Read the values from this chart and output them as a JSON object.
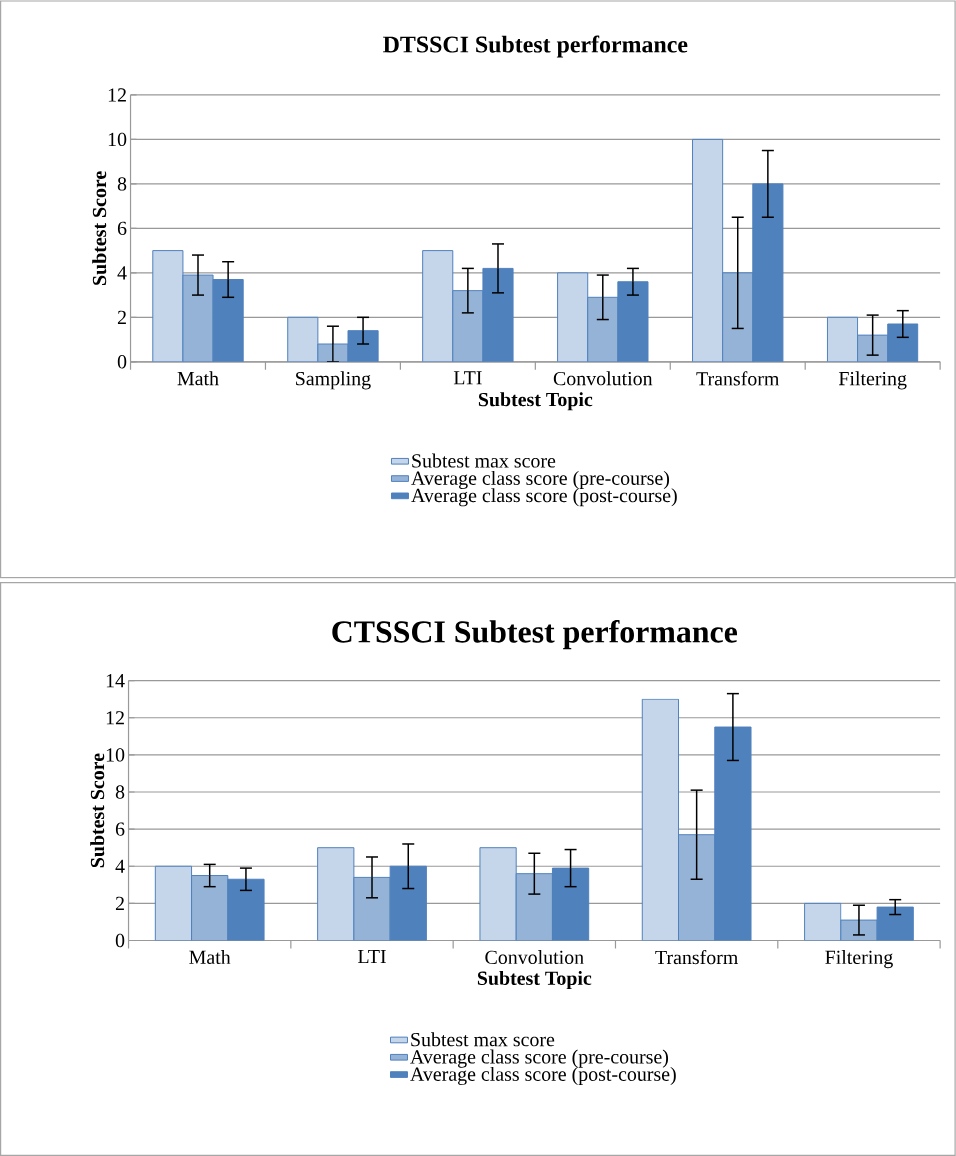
{
  "chart_data": [
    {
      "type": "bar",
      "title": "DTSSCI Subtest performance",
      "xlabel": "Subtest Topic",
      "ylabel": "Subtest Score",
      "categories": [
        "Math",
        "Sampling",
        "LTI",
        "Convolution",
        "Transform",
        "Filtering"
      ],
      "ylim": [
        0,
        12
      ],
      "yticks": [
        0,
        2,
        4,
        6,
        8,
        10,
        12
      ],
      "grid": "y",
      "legend": "bottom",
      "series": [
        {
          "name": "Subtest max score",
          "color": "#c5d5ea",
          "values": [
            5,
            2,
            5,
            4,
            10,
            2
          ]
        },
        {
          "name": "Average class score (pre-course)",
          "color": "#95b3d7",
          "values": [
            3.9,
            0.8,
            3.2,
            2.9,
            4.0,
            1.2
          ],
          "errors": [
            0.9,
            0.8,
            1.0,
            1.0,
            2.5,
            0.9
          ]
        },
        {
          "name": "Average class score (post-course)",
          "color": "#4f81bd",
          "values": [
            3.7,
            1.4,
            4.2,
            3.6,
            8.0,
            1.7
          ],
          "errors": [
            0.8,
            0.6,
            1.1,
            0.6,
            1.5,
            0.6
          ]
        }
      ]
    },
    {
      "type": "bar",
      "title": "CTSSCI Subtest performance",
      "xlabel": "Subtest Topic",
      "ylabel": "Subtest Score",
      "categories": [
        "Math",
        "LTI",
        "Convolution",
        "Transform",
        "Filtering"
      ],
      "ylim": [
        0,
        14
      ],
      "yticks": [
        0,
        2,
        4,
        6,
        8,
        10,
        12,
        14
      ],
      "grid": "y",
      "legend": "bottom",
      "series": [
        {
          "name": "Subtest max score",
          "color": "#c5d5ea",
          "values": [
            4,
            5,
            5,
            13,
            2
          ]
        },
        {
          "name": "Average class score (pre-course)",
          "color": "#95b3d7",
          "values": [
            3.5,
            3.4,
            3.6,
            5.7,
            1.1
          ],
          "errors": [
            0.6,
            1.1,
            1.1,
            2.4,
            0.8
          ]
        },
        {
          "name": "Average class score (post-course)",
          "color": "#4f81bd",
          "values": [
            3.3,
            4.0,
            3.9,
            11.5,
            1.8
          ],
          "errors": [
            0.6,
            1.2,
            1.0,
            1.8,
            0.4
          ]
        }
      ]
    }
  ]
}
